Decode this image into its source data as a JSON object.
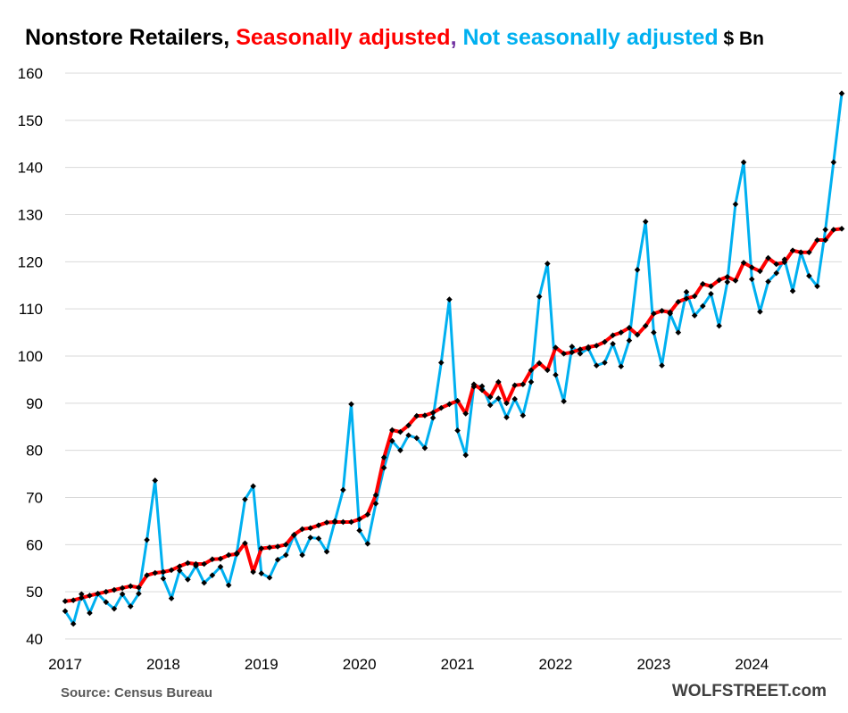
{
  "chart_data": {
    "type": "line",
    "title_parts": {
      "lead": "Nonstore Retailers, ",
      "sa": "Seasonally adjusted",
      "comma": ",",
      "nsa": " Not seasonally adjusted",
      "unit": " $ Bn"
    },
    "source": "Source: Census Bureau",
    "brand": "WOLFSTREET.com",
    "ylim": [
      40,
      160
    ],
    "yticks": [
      40,
      50,
      60,
      70,
      80,
      90,
      100,
      110,
      120,
      130,
      140,
      150,
      160
    ],
    "year_labels": [
      "2017",
      "2018",
      "2019",
      "2020",
      "2021",
      "2022",
      "2023",
      "2024"
    ],
    "grid": true,
    "colors": {
      "sa": "#ff0000",
      "nsa": "#00b0f0",
      "marker": "#000000",
      "grid": "#d9d9d9"
    },
    "series": [
      {
        "key": "nsa",
        "values": [
          45.9,
          43.2,
          49.5,
          45.5,
          49.6,
          47.8,
          46.4,
          49.5,
          46.9,
          49.6,
          61.0,
          73.6,
          52.8,
          48.6,
          54.5,
          52.6,
          55.5,
          51.9,
          53.5,
          55.3,
          51.4,
          58.2,
          69.6,
          72.4,
          53.9,
          53.0,
          56.8,
          57.8,
          62.0,
          57.8,
          61.5,
          61.3,
          58.5,
          65.0,
          71.6,
          89.8,
          63.0,
          60.2,
          68.7,
          76.3,
          82.0,
          80.0,
          83.2,
          82.6,
          80.5,
          86.9,
          98.6,
          112.0,
          84.2,
          79.0,
          93.5,
          93.6,
          89.6,
          91.0,
          87.0,
          90.9,
          87.4,
          94.5,
          112.6,
          119.6,
          96.0,
          90.4,
          102.0,
          100.5,
          101.6,
          98.0,
          98.6,
          102.6,
          97.8,
          103.3,
          118.3,
          128.5,
          105.0,
          98.0,
          109.0,
          105.0,
          113.6,
          108.6,
          110.6,
          113.2,
          106.4,
          115.7,
          132.2,
          141.1,
          116.3,
          109.4,
          115.8,
          117.6,
          120.5,
          113.8,
          122.0,
          117.0,
          114.8,
          126.8,
          141.1,
          155.7
        ]
      },
      {
        "key": "sa",
        "values": [
          48.0,
          48.2,
          48.7,
          49.2,
          49.6,
          50.0,
          50.4,
          50.8,
          51.2,
          50.9,
          53.5,
          54.0,
          54.2,
          54.6,
          55.4,
          56.1,
          55.9,
          55.9,
          56.9,
          57.0,
          57.8,
          58.0,
          60.3,
          54.2,
          59.2,
          59.4,
          59.6,
          60.0,
          62.1,
          63.3,
          63.5,
          64.1,
          64.7,
          64.8,
          64.8,
          64.8,
          65.4,
          66.4,
          70.5,
          78.5,
          84.3,
          83.9,
          85.3,
          87.3,
          87.4,
          88.0,
          89.0,
          89.8,
          90.5,
          87.8,
          94.0,
          92.8,
          91.3,
          94.5,
          90.0,
          93.8,
          94.0,
          97.0,
          98.5,
          97.0,
          101.8,
          100.5,
          100.8,
          101.4,
          101.9,
          102.2,
          103.0,
          104.4,
          105.0,
          106.0,
          104.5,
          106.4,
          109.0,
          109.6,
          109.3,
          111.5,
          112.2,
          112.7,
          115.3,
          114.8,
          116.1,
          116.8,
          116.0,
          119.8,
          118.8,
          118.0,
          120.8,
          119.5,
          119.9,
          122.4,
          122.0,
          122.0,
          124.6,
          124.6,
          126.8,
          127.0
        ]
      }
    ]
  }
}
